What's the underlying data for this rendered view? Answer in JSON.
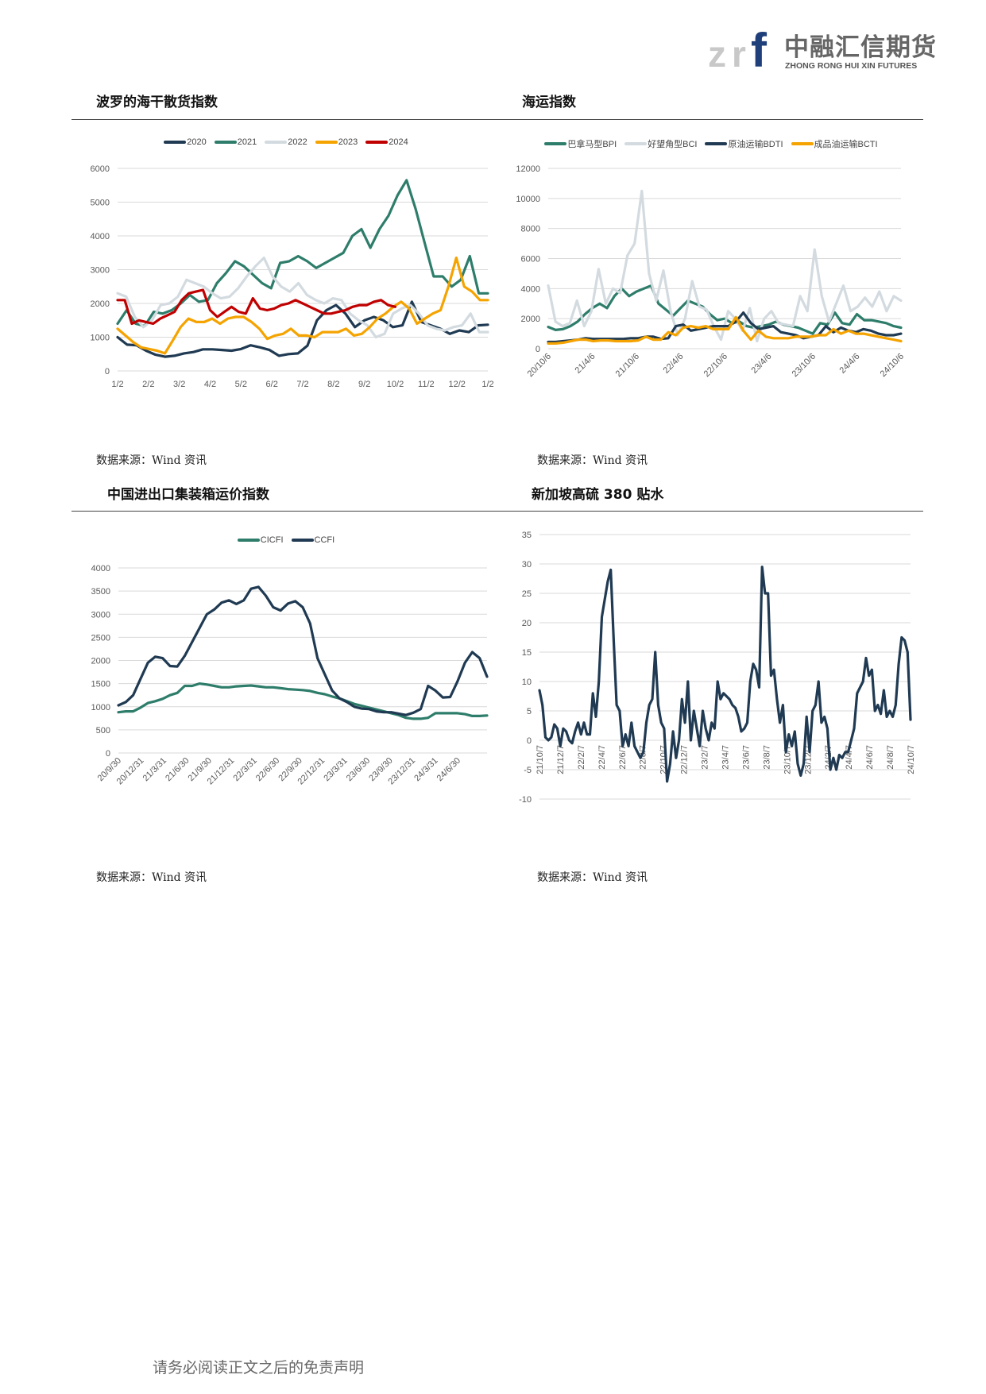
{
  "header": {
    "logo_mark": "zrf",
    "logo_cn": "中融汇信期货",
    "logo_en": "ZHONG RONG HUI XIN FUTURES",
    "logo_colors": {
      "z_r": "#c8c8c8",
      "f": "#1f3f7a"
    }
  },
  "sections": [
    {
      "title": "波罗的海干散货指数",
      "source": "数据来源：Wind 资讯"
    },
    {
      "title": "海运指数",
      "source": "数据来源：Wind 资讯"
    },
    {
      "title": "中国进出口集装箱运价指数",
      "source": "数据来源：Wind 资讯"
    },
    {
      "title": "新加坡高硫 380 贴水",
      "source": "数据来源：Wind 资讯"
    }
  ],
  "footer": {
    "disclaimer": "请务必阅读正文之后的免责声明"
  },
  "chart_data": [
    {
      "type": "line",
      "title": "",
      "ylim": [
        0,
        6000
      ],
      "yticks": [
        0,
        1000,
        2000,
        3000,
        4000,
        5000,
        6000
      ],
      "xticks": [
        "1/2",
        "2/2",
        "3/2",
        "4/2",
        "5/2",
        "6/2",
        "7/2",
        "8/2",
        "9/2",
        "10/2",
        "11/2",
        "12/2",
        "1/2"
      ],
      "grid": true,
      "legend": "top",
      "series": [
        {
          "name": "2020",
          "color": "#1f3a52",
          "x_end": "1/2",
          "values": [
            1000,
            780,
            760,
            600,
            480,
            420,
            450,
            520,
            560,
            640,
            640,
            620,
            600,
            650,
            760,
            700,
            620,
            450,
            500,
            520,
            750,
            1500,
            1800,
            1950,
            1700,
            1300,
            1500,
            1600,
            1500,
            1300,
            1350,
            2050,
            1450,
            1350,
            1250,
            1100,
            1200,
            1150,
            1350,
            1370
          ]
        },
        {
          "name": "2021",
          "color": "#2e7d6b",
          "x_end": "1/2",
          "values": [
            1400,
            1800,
            1400,
            1330,
            1750,
            1700,
            1800,
            2000,
            2250,
            2050,
            2100,
            2600,
            2900,
            3250,
            3100,
            2850,
            2600,
            2450,
            3200,
            3250,
            3400,
            3250,
            3050,
            3200,
            3350,
            3500,
            4000,
            4200,
            3650,
            4200,
            4600,
            5200,
            5650,
            4800,
            3800,
            2800,
            2800,
            2500,
            2700,
            3400,
            2300,
            2300
          ]
        },
        {
          "name": "2022",
          "color": "#d3dbe0",
          "x_end": "1/2",
          "values": [
            2300,
            2200,
            1600,
            1300,
            1500,
            1950,
            2000,
            2200,
            2700,
            2600,
            2500,
            2300,
            2150,
            2200,
            2450,
            2800,
            3100,
            3350,
            2800,
            2500,
            2350,
            2600,
            2250,
            2100,
            2000,
            2150,
            2100,
            1700,
            1500,
            1350,
            1000,
            1100,
            1700,
            1850,
            1950,
            1700,
            1350,
            1250,
            1200,
            1300,
            1350,
            1700,
            1150,
            1150
          ]
        },
        {
          "name": "2023",
          "color": "#f5a300",
          "x_end": "1/2",
          "values": [
            1250,
            1050,
            850,
            700,
            650,
            600,
            520,
            900,
            1300,
            1550,
            1450,
            1450,
            1550,
            1400,
            1550,
            1600,
            1600,
            1450,
            1250,
            950,
            1050,
            1100,
            1250,
            1050,
            1050,
            1000,
            1150,
            1150,
            1150,
            1250,
            1050,
            1100,
            1300,
            1550,
            1700,
            1900,
            2050,
            1850,
            1400,
            1550,
            1700,
            1800,
            2500,
            3350,
            2500,
            2350,
            2100,
            2100
          ]
        },
        {
          "name": "2024",
          "color": "#c00000",
          "x_end": "10/2",
          "values": [
            2100,
            2100,
            1400,
            1500,
            1450,
            1400,
            1550,
            1650,
            1750,
            2100,
            2300,
            2350,
            2400,
            1800,
            1600,
            1750,
            1900,
            1750,
            1700,
            2150,
            1850,
            1800,
            1850,
            1950,
            2000,
            2100,
            2000,
            1900,
            1800,
            1700,
            1700,
            1750,
            1800,
            1900,
            1950,
            1950,
            2050,
            2100,
            1950,
            1900
          ]
        }
      ]
    },
    {
      "type": "line",
      "title": "",
      "ylim": [
        0,
        12000
      ],
      "yticks": [
        0,
        2000,
        4000,
        6000,
        8000,
        10000,
        12000
      ],
      "xticks": [
        "20/10/6",
        "21/4/6",
        "21/10/6",
        "22/4/6",
        "22/10/6",
        "23/4/6",
        "23/10/6",
        "24/4/6",
        "24/10/6"
      ],
      "grid": true,
      "legend": "top",
      "series": [
        {
          "name": "巴拿马型BPI",
          "color": "#2e7d6b",
          "values": [
            1450,
            1250,
            1300,
            1500,
            1800,
            2300,
            2700,
            3000,
            2700,
            3500,
            4000,
            3500,
            3800,
            4000,
            4200,
            3000,
            2600,
            2200,
            2700,
            3200,
            3000,
            2800,
            2300,
            1900,
            2000,
            1700,
            1800,
            1500,
            1400,
            1500,
            1600,
            1800,
            1600,
            1500,
            1400,
            1200,
            1000,
            1700,
            1600,
            2400,
            1700,
            1600,
            2300,
            1900,
            1900,
            1800,
            1700,
            1500,
            1400
          ]
        },
        {
          "name": "好望角型BCI",
          "color": "#d3dbe0",
          "values": [
            4200,
            1800,
            1500,
            1700,
            3200,
            1500,
            2500,
            5300,
            3000,
            4000,
            3700,
            6200,
            7000,
            10500,
            5000,
            3200,
            5200,
            2500,
            900,
            2000,
            4500,
            2800,
            2600,
            1500,
            600,
            2500,
            2000,
            1200,
            2700,
            500,
            2000,
            2500,
            1700,
            1600,
            1500,
            3500,
            2500,
            6600,
            3500,
            1800,
            3000,
            4200,
            2500,
            2800,
            3400,
            2800,
            3800,
            2500,
            3500,
            3200
          ]
        },
        {
          "name": "原油运输BDTI",
          "color": "#1f3a52",
          "values": [
            450,
            450,
            500,
            550,
            600,
            700,
            650,
            650,
            650,
            650,
            650,
            700,
            700,
            800,
            800,
            650,
            700,
            1500,
            1600,
            1200,
            1300,
            1400,
            1500,
            1500,
            1500,
            1800,
            2400,
            1700,
            1300,
            1400,
            1500,
            1100,
            1000,
            900,
            700,
            800,
            900,
            1500,
            1100,
            1400,
            1200,
            1100,
            1300,
            1200,
            1000,
            900,
            900,
            1000
          ]
        },
        {
          "name": "成品油运输BCTI",
          "color": "#f5a300",
          "values": [
            350,
            350,
            400,
            500,
            600,
            600,
            500,
            550,
            550,
            500,
            500,
            500,
            550,
            800,
            600,
            600,
            1100,
            900,
            1400,
            1500,
            1400,
            1500,
            1300,
            1300,
            1300,
            2100,
            1200,
            600,
            1200,
            800,
            700,
            700,
            700,
            800,
            800,
            800,
            900,
            900,
            1300,
            1000,
            1200,
            1000,
            1000,
            900,
            800,
            700,
            600,
            500
          ]
        }
      ]
    },
    {
      "type": "line",
      "title": "",
      "ylim": [
        0,
        4000
      ],
      "yticks": [
        0,
        500,
        1000,
        1500,
        2000,
        2500,
        3000,
        3500,
        4000
      ],
      "xticks": [
        "20/9/30",
        "20/12/31",
        "21/3/31",
        "21/6/30",
        "21/9/30",
        "21/12/31",
        "22/3/31",
        "22/6/30",
        "22/9/30",
        "22/12/31",
        "23/3/31",
        "23/6/30",
        "23/9/30",
        "23/12/31",
        "24/3/31",
        "24/6/30"
      ],
      "grid": true,
      "legend": "top",
      "series": [
        {
          "name": "CICFI",
          "color": "#2e7d6b",
          "values": [
            880,
            900,
            900,
            980,
            1080,
            1120,
            1170,
            1250,
            1300,
            1450,
            1450,
            1500,
            1480,
            1450,
            1420,
            1420,
            1440,
            1450,
            1460,
            1440,
            1420,
            1420,
            1400,
            1380,
            1370,
            1360,
            1340,
            1300,
            1270,
            1220,
            1180,
            1120,
            1060,
            1020,
            980,
            940,
            900,
            860,
            820,
            760,
            740,
            740,
            760,
            860,
            860,
            860,
            860,
            840,
            800,
            800,
            810
          ]
        },
        {
          "name": "CCFI",
          "color": "#1f3a52",
          "values": [
            1030,
            1100,
            1250,
            1600,
            1950,
            2080,
            2050,
            1880,
            1870,
            2100,
            2400,
            2700,
            3000,
            3100,
            3250,
            3300,
            3220,
            3300,
            3550,
            3590,
            3400,
            3150,
            3080,
            3230,
            3280,
            3150,
            2800,
            2050,
            1700,
            1350,
            1180,
            1100,
            1000,
            960,
            950,
            900,
            880,
            880,
            850,
            820,
            870,
            950,
            1450,
            1350,
            1200,
            1210,
            1550,
            1950,
            2180,
            2050,
            1650
          ]
        }
      ]
    },
    {
      "type": "line",
      "title": "",
      "ylim": [
        -10,
        35
      ],
      "yticks": [
        -10,
        -5,
        0,
        5,
        10,
        15,
        20,
        25,
        30,
        35
      ],
      "xticks": [
        "21/10/7",
        "21/12/7",
        "22/2/7",
        "22/4/7",
        "22/6/7",
        "22/8/7",
        "22/10/7",
        "22/12/7",
        "23/2/7",
        "23/4/7",
        "23/6/7",
        "23/8/7",
        "23/10/7",
        "23/12/7",
        "24/2/7",
        "24/4/7",
        "24/6/7",
        "24/8/7",
        "24/10/7"
      ],
      "grid": true,
      "legend": "none",
      "series": [
        {
          "color": "#1f3a52",
          "values": [
            8.5,
            6,
            0.5,
            0,
            0.5,
            2.7,
            2,
            -1,
            2,
            1.5,
            0,
            -0.5,
            1.5,
            3,
            1,
            3,
            1,
            1,
            8,
            4,
            10,
            21,
            24,
            27,
            29,
            17,
            6,
            5,
            -1,
            1,
            -1,
            3,
            -1,
            -2,
            -3,
            -2,
            3,
            6,
            7,
            15,
            6,
            3,
            2,
            -7,
            -4,
            1.5,
            -3,
            0,
            7,
            3,
            10,
            0,
            5,
            2,
            -1,
            5,
            2,
            0,
            3,
            2,
            10,
            7,
            8,
            7.5,
            7,
            6,
            5.5,
            4,
            1.5,
            2,
            3,
            10,
            13,
            12,
            9,
            29.5,
            25,
            25,
            11,
            12,
            7,
            3,
            6,
            -2,
            1,
            -1,
            1.5,
            -4,
            -6,
            -4,
            4,
            -2,
            5,
            6,
            10,
            3,
            4,
            2,
            -5,
            -3,
            -5,
            -2.5,
            -3,
            -2,
            -2,
            0,
            2,
            8,
            9,
            10,
            14,
            11,
            12,
            5,
            6,
            4.5,
            8.5,
            4,
            5,
            4,
            6,
            13,
            17.5,
            17,
            15,
            3.5
          ]
        }
      ]
    }
  ]
}
